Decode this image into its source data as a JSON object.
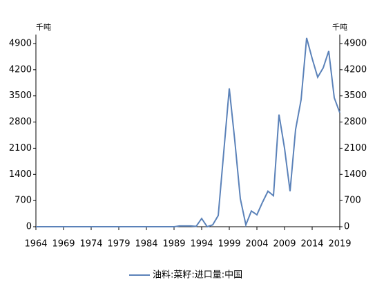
{
  "chart_data": {
    "type": "line",
    "y_unit": "千吨",
    "y2_unit": "千吨",
    "x": [
      1964,
      1965,
      1966,
      1967,
      1968,
      1969,
      1970,
      1971,
      1972,
      1973,
      1974,
      1975,
      1976,
      1977,
      1978,
      1979,
      1980,
      1981,
      1982,
      1983,
      1984,
      1985,
      1986,
      1987,
      1988,
      1989,
      1990,
      1991,
      1992,
      1993,
      1994,
      1995,
      1996,
      1997,
      1998,
      1999,
      2000,
      2001,
      2002,
      2003,
      2004,
      2005,
      2006,
      2007,
      2008,
      2009,
      2010,
      2011,
      2012,
      2013,
      2014,
      2015,
      2016,
      2017,
      2018,
      2019
    ],
    "series": [
      {
        "name": "油料:菜籽:进口量:中国",
        "color": "#5b82b9",
        "values": [
          0,
          0,
          0,
          0,
          0,
          0,
          0,
          0,
          0,
          0,
          0,
          0,
          0,
          0,
          0,
          0,
          0,
          0,
          0,
          0,
          0,
          0,
          0,
          0,
          0,
          0,
          20,
          20,
          20,
          10,
          220,
          0,
          50,
          300,
          2000,
          3700,
          2300,
          750,
          50,
          420,
          320,
          650,
          950,
          830,
          3000,
          2100,
          950,
          2600,
          3400,
          5050,
          4500,
          4000,
          4250,
          4700,
          3450,
          3050
        ]
      }
    ],
    "xlim": [
      1964,
      2019
    ],
    "xticks": [
      1964,
      1969,
      1974,
      1979,
      1984,
      1989,
      1994,
      1999,
      2004,
      2009,
      2014,
      2019
    ],
    "ylim": [
      0,
      4900
    ],
    "yticks": [
      0,
      700,
      1400,
      2100,
      2800,
      3500,
      4200,
      4900
    ],
    "y2lim": [
      0,
      4900
    ],
    "y2ticks": [
      0,
      700,
      1400,
      2100,
      2800,
      3500,
      4200,
      4900
    ],
    "legend": "bottom"
  }
}
